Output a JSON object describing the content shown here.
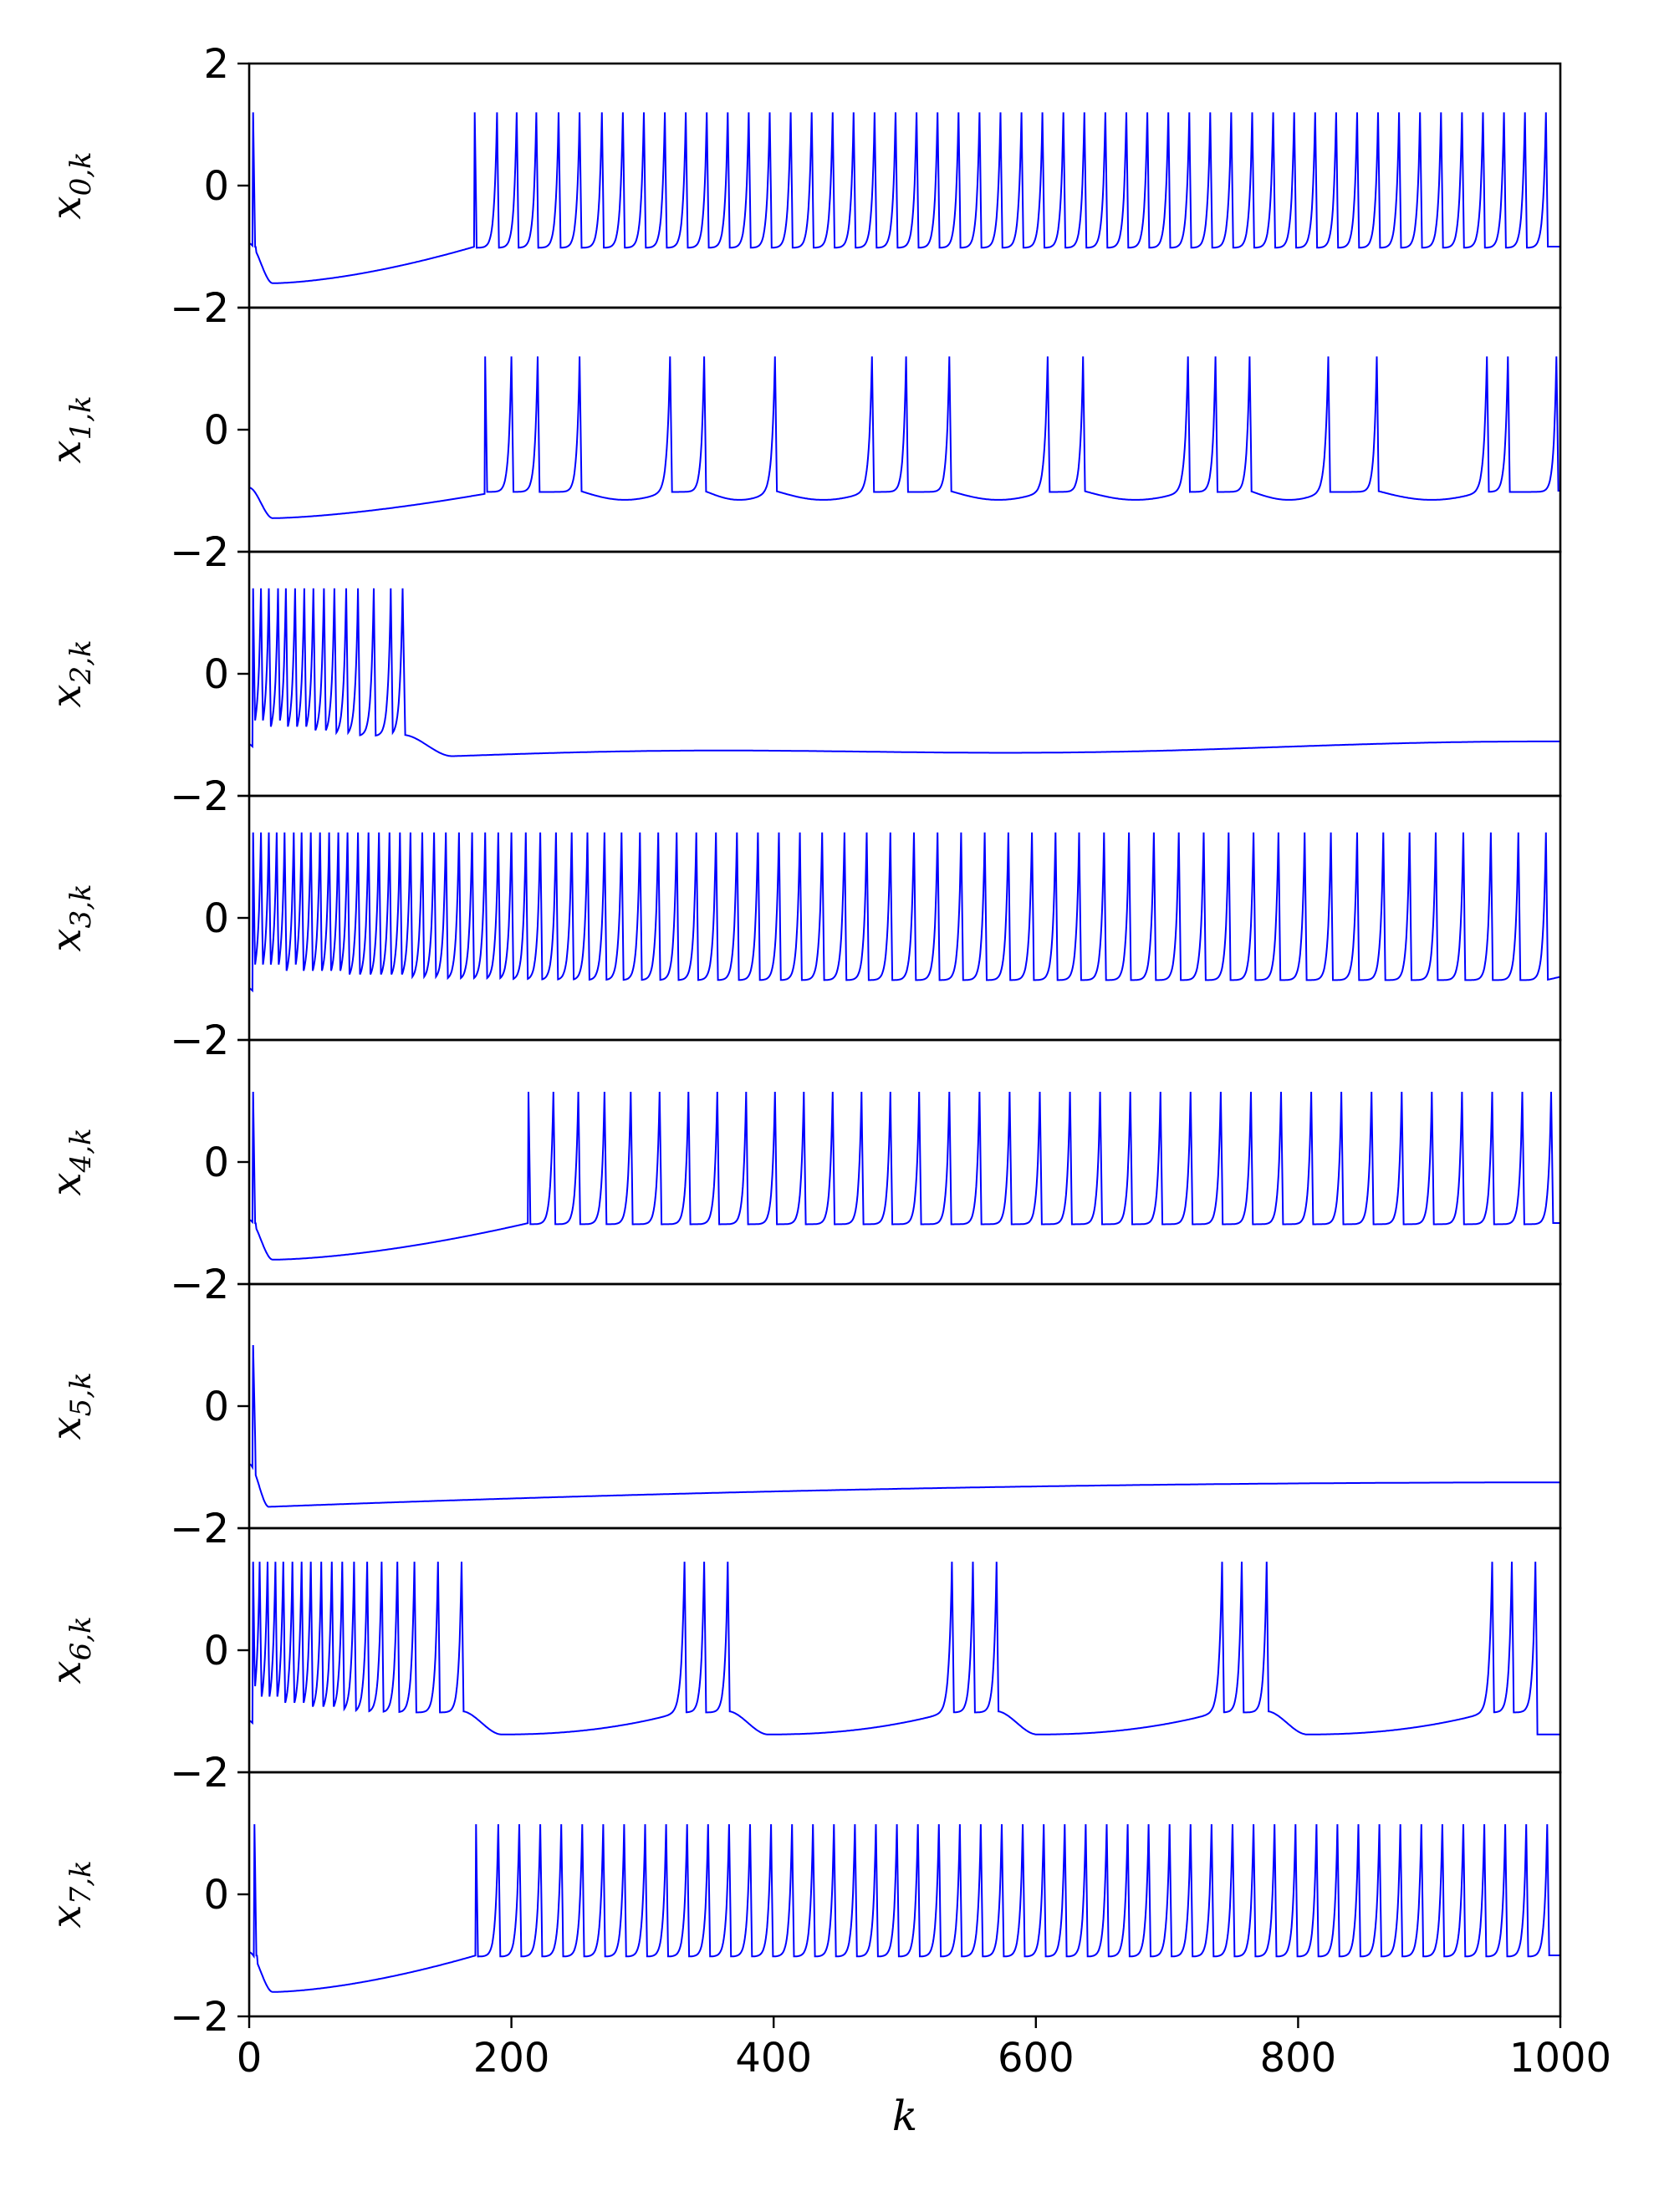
{
  "chart_data": {
    "type": "line",
    "layout": "stacked-subplots",
    "xlabel": "k",
    "xlim": [
      0,
      1000
    ],
    "xticks": [
      0,
      200,
      400,
      600,
      800,
      1000
    ],
    "ylim": [
      -2,
      2
    ],
    "yticks": [
      -2,
      0,
      2
    ],
    "grid": false,
    "legend": "none",
    "line_color": "#0000ff",
    "series": [
      {
        "ylabel_main": "x",
        "ylabel_sub": "0,k",
        "pattern": "delayed_regular",
        "initial_spikes": [
          3
        ],
        "spike_times": [
          172,
          189,
          204,
          219,
          236,
          252,
          269,
          285,
          301,
          317,
          333,
          349,
          365,
          381,
          397,
          413,
          429,
          445,
          461,
          477,
          493,
          509,
          525,
          541,
          557,
          573,
          589,
          605,
          621,
          637,
          653,
          669,
          685,
          701,
          717,
          733,
          749,
          765,
          781,
          797,
          813,
          829,
          845,
          861,
          877,
          893,
          909,
          925,
          941,
          957,
          973,
          989
        ],
        "spike_peak": 1.2,
        "reset": -1.0,
        "trough": -1.6,
        "trough_k": 18,
        "resting_before": -1.0
      },
      {
        "ylabel_main": "x",
        "ylabel_sub": "1,k",
        "pattern": "bursting",
        "initial_spikes": [],
        "spike_times": [
          180,
          200,
          220,
          252,
          321,
          347,
          401,
          475,
          501,
          534,
          609,
          636,
          716,
          737,
          763,
          823,
          860,
          944,
          960,
          997
        ],
        "spike_peak": 1.2,
        "reset": -1.0,
        "trough": -1.45,
        "trough_k": 18,
        "resting_before": -1.05
      },
      {
        "ylabel_main": "x",
        "ylabel_sub": "2,k",
        "pattern": "early_then_silent",
        "initial_spikes": [],
        "spike_times": [
          3,
          9,
          15,
          22,
          28,
          35,
          42,
          49,
          57,
          65,
          74,
          83,
          95,
          108,
          117
        ],
        "spike_peak": 1.4,
        "reset": -1.0,
        "trough": -1.35,
        "trough_k": 155,
        "resting_after": -1.15
      },
      {
        "ylabel_main": "x",
        "ylabel_sub": "3,k",
        "pattern": "regular_fast",
        "initial_spikes": [],
        "spike_times": [
          3,
          9,
          15,
          21,
          27,
          34,
          40,
          47,
          54,
          61,
          68,
          75,
          83,
          91,
          99,
          107,
          115,
          123,
          132,
          141,
          150,
          160,
          170,
          180,
          190,
          200,
          211,
          222,
          234,
          246,
          258,
          271,
          284,
          298,
          312,
          326,
          341,
          356,
          372,
          388,
          404,
          420,
          437,
          454,
          471,
          489,
          507,
          525,
          543,
          561,
          579,
          597,
          615,
          633,
          652,
          671,
          690,
          709,
          728,
          747,
          766,
          785,
          805,
          825,
          845,
          865,
          885,
          905,
          926,
          947,
          968,
          989
        ],
        "spike_peak": 1.4,
        "reset": -1.0
      },
      {
        "ylabel_main": "x",
        "ylabel_sub": "4,k",
        "pattern": "delayed_regular",
        "initial_spikes": [
          3
        ],
        "spike_times": [
          213,
          232,
          251,
          271,
          291,
          313,
          335,
          357,
          379,
          401,
          423,
          445,
          467,
          489,
          511,
          534,
          557,
          580,
          603,
          626,
          649,
          672,
          695,
          718,
          741,
          764,
          787,
          810,
          833,
          856,
          879,
          902,
          925,
          948,
          971,
          993
        ],
        "spike_peak": 1.15,
        "reset": -1.0,
        "trough": -1.6,
        "trough_k": 18,
        "resting_before": -1.0
      },
      {
        "ylabel_main": "x",
        "ylabel_sub": "5,k",
        "pattern": "silent",
        "initial_spikes": [
          3
        ],
        "spike_times": [],
        "spike_peak": 1.0,
        "reset": -1.0,
        "trough": -1.65,
        "trough_k": 15,
        "resting_after": -1.25
      },
      {
        "ylabel_main": "x",
        "ylabel_sub": "6,k",
        "pattern": "bursting_slow",
        "initial_spikes": [],
        "spike_times": [
          3,
          8,
          14,
          20,
          26,
          33,
          40,
          47,
          55,
          63,
          71,
          80,
          90,
          101,
          113,
          126,
          144,
          162,
          332,
          347,
          365,
          536,
          552,
          570,
          742,
          757,
          776,
          948,
          963,
          981
        ],
        "spike_peak": 1.45,
        "reset": -1.0,
        "trough": -1.38,
        "resting_after": -1.15
      },
      {
        "ylabel_main": "x",
        "ylabel_sub": "7,k",
        "pattern": "delayed_regular",
        "initial_spikes": [
          4
        ],
        "spike_times": [
          173,
          190,
          206,
          222,
          238,
          254,
          270,
          286,
          302,
          318,
          334,
          350,
          366,
          382,
          398,
          414,
          430,
          446,
          462,
          478,
          494,
          510,
          526,
          542,
          558,
          574,
          590,
          606,
          622,
          638,
          654,
          670,
          686,
          702,
          718,
          734,
          750,
          766,
          782,
          798,
          814,
          830,
          846,
          862,
          878,
          894,
          910,
          926,
          942,
          958,
          974,
          990
        ],
        "spike_peak": 1.15,
        "reset": -1.0,
        "trough": -1.6,
        "trough_k": 18,
        "resting_before": -1.0
      }
    ]
  }
}
